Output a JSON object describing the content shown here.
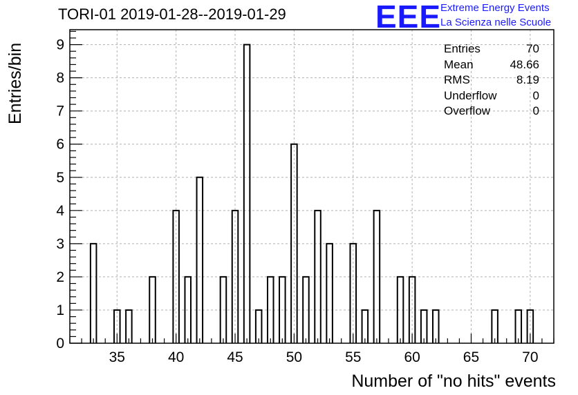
{
  "title": "TORI-01 2019-01-28--2019-01-29",
  "logo": {
    "text": "EEE",
    "line1": "Extreme Energy Events",
    "line2": "La Scienza nelle Scuole",
    "color": "#1a1aff"
  },
  "stats": [
    {
      "label": "Entries",
      "value": "70"
    },
    {
      "label": "Mean",
      "value": "48.66"
    },
    {
      "label": "RMS",
      "value": "8.19"
    },
    {
      "label": "Underflow",
      "value": "0"
    },
    {
      "label": "Overflow",
      "value": "0"
    }
  ],
  "chart_data": {
    "type": "bar",
    "title": "TORI-01 2019-01-28--2019-01-29",
    "xlabel": "Number of \"no hits\" events",
    "ylabel": "Entries/bin",
    "xlim": [
      31,
      72
    ],
    "ylim": [
      0,
      9.45
    ],
    "bin_width": 0.5,
    "grid": true,
    "legend": "top-right",
    "x_ticks": [
      35,
      40,
      45,
      50,
      55,
      60,
      65,
      70
    ],
    "y_ticks": [
      0,
      1,
      2,
      3,
      4,
      5,
      6,
      7,
      8,
      9
    ],
    "bins": [
      {
        "x": 33,
        "count": 3
      },
      {
        "x": 35,
        "count": 1
      },
      {
        "x": 36,
        "count": 1
      },
      {
        "x": 38,
        "count": 2
      },
      {
        "x": 40,
        "count": 4
      },
      {
        "x": 41,
        "count": 2
      },
      {
        "x": 42,
        "count": 5
      },
      {
        "x": 44,
        "count": 2
      },
      {
        "x": 45,
        "count": 4
      },
      {
        "x": 46,
        "count": 9
      },
      {
        "x": 47,
        "count": 1
      },
      {
        "x": 48,
        "count": 2
      },
      {
        "x": 49,
        "count": 2
      },
      {
        "x": 50,
        "count": 6
      },
      {
        "x": 51,
        "count": 2
      },
      {
        "x": 52,
        "count": 4
      },
      {
        "x": 53,
        "count": 3
      },
      {
        "x": 55,
        "count": 3
      },
      {
        "x": 56,
        "count": 1
      },
      {
        "x": 57,
        "count": 4
      },
      {
        "x": 59,
        "count": 2
      },
      {
        "x": 60,
        "count": 2
      },
      {
        "x": 61,
        "count": 1
      },
      {
        "x": 62,
        "count": 1
      },
      {
        "x": 67,
        "count": 1
      },
      {
        "x": 69,
        "count": 1
      },
      {
        "x": 70,
        "count": 1
      }
    ]
  }
}
